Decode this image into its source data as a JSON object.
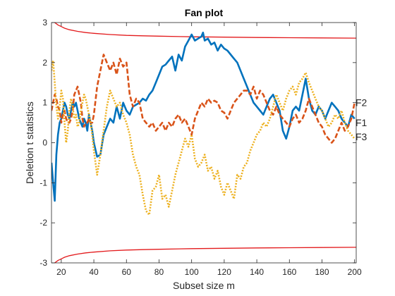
{
  "chart_data": {
    "type": "line",
    "title": "Fan plot",
    "xlabel": "Subset size m",
    "ylabel": "Deletion t statistics",
    "xlim": [
      14,
      201
    ],
    "ylim": [
      -3,
      3
    ],
    "xticks": [
      20,
      40,
      60,
      80,
      100,
      120,
      140,
      160,
      180,
      200
    ],
    "yticks": [
      -3,
      -2,
      -1,
      0,
      1,
      2,
      3
    ],
    "grid": false,
    "legend": "none",
    "bounds": {
      "color": "#e31a1c",
      "x": [
        14,
        16,
        18,
        20,
        22,
        25,
        30,
        35,
        40,
        50,
        60,
        70,
        80,
        100,
        120,
        140,
        160,
        180,
        201
      ],
      "upper": [
        3.08,
        3.0,
        2.94,
        2.9,
        2.86,
        2.82,
        2.78,
        2.75,
        2.73,
        2.7,
        2.68,
        2.67,
        2.66,
        2.645,
        2.635,
        2.627,
        2.621,
        2.616,
        2.612
      ],
      "lower": [
        -3.08,
        -3.0,
        -2.94,
        -2.9,
        -2.86,
        -2.82,
        -2.78,
        -2.75,
        -2.73,
        -2.7,
        -2.68,
        -2.67,
        -2.66,
        -2.645,
        -2.635,
        -2.627,
        -2.621,
        -2.616,
        -2.612
      ]
    },
    "series": [
      {
        "name": "F1",
        "color": "#0072bd",
        "style": "solid",
        "x": [
          14,
          15,
          16,
          17,
          18,
          19,
          20,
          21,
          22,
          23,
          24,
          25,
          26,
          27,
          28,
          29,
          30,
          31,
          32,
          33,
          34,
          35,
          36,
          37,
          38,
          39,
          40,
          42,
          44,
          46,
          48,
          50,
          52,
          54,
          56,
          58,
          60,
          62,
          64,
          66,
          68,
          70,
          72,
          74,
          76,
          78,
          80,
          82,
          84,
          86,
          88,
          90,
          92,
          94,
          96,
          98,
          100,
          102,
          104,
          106,
          107,
          108,
          110,
          112,
          114,
          116,
          118,
          120,
          122,
          124,
          126,
          128,
          130,
          132,
          134,
          136,
          138,
          140,
          142,
          144,
          146,
          148,
          150,
          152,
          154,
          156,
          158,
          160,
          162,
          164,
          166,
          168,
          170,
          172,
          174,
          176,
          178,
          180,
          182,
          184,
          186,
          188,
          190,
          192,
          194,
          196,
          198,
          200
        ],
        "y": [
          -0.5,
          -1.0,
          -1.45,
          -0.3,
          0.2,
          0.5,
          0.6,
          0.8,
          1.0,
          0.9,
          0.7,
          0.6,
          0.8,
          1.0,
          0.9,
          1.0,
          0.8,
          0.6,
          0.5,
          0.4,
          0.6,
          0.5,
          0.3,
          0.7,
          0.5,
          0.3,
          0.0,
          -0.35,
          -0.3,
          0.2,
          0.4,
          0.6,
          0.5,
          0.9,
          0.6,
          1.0,
          0.8,
          0.7,
          0.9,
          0.95,
          1.0,
          1.1,
          1.05,
          1.2,
          1.3,
          1.5,
          1.7,
          1.9,
          1.95,
          2.05,
          2.15,
          1.8,
          2.2,
          2.05,
          2.4,
          2.55,
          2.7,
          2.55,
          2.6,
          2.65,
          2.75,
          2.55,
          2.6,
          2.45,
          2.5,
          2.3,
          2.45,
          2.35,
          2.3,
          2.2,
          2.1,
          2.0,
          1.8,
          1.6,
          1.4,
          1.2,
          1.0,
          0.9,
          0.8,
          0.7,
          0.9,
          1.1,
          1.2,
          1.0,
          0.8,
          0.3,
          0.1,
          0.4,
          0.8,
          0.9,
          0.8,
          1.2,
          1.6,
          1.1,
          0.8,
          0.7,
          0.9,
          0.8,
          0.6,
          0.8,
          1.0,
          0.9,
          0.8,
          0.6,
          0.5,
          0.4,
          0.7,
          0.6
        ]
      },
      {
        "name": "F2",
        "color": "#d95319",
        "style": "dashed",
        "x": [
          14,
          15,
          16,
          17,
          18,
          19,
          20,
          21,
          22,
          23,
          24,
          25,
          26,
          27,
          28,
          29,
          30,
          31,
          32,
          33,
          34,
          35,
          36,
          37,
          38,
          39,
          40,
          42,
          44,
          46,
          48,
          50,
          52,
          54,
          56,
          58,
          60,
          62,
          64,
          66,
          68,
          70,
          72,
          74,
          76,
          78,
          80,
          82,
          84,
          86,
          88,
          90,
          92,
          94,
          96,
          98,
          100,
          102,
          104,
          106,
          108,
          110,
          112,
          114,
          116,
          118,
          120,
          122,
          124,
          126,
          128,
          130,
          132,
          134,
          136,
          138,
          140,
          142,
          144,
          146,
          148,
          150,
          152,
          154,
          156,
          158,
          160,
          162,
          164,
          166,
          168,
          170,
          172,
          174,
          176,
          178,
          180,
          182,
          184,
          186,
          188,
          190,
          192,
          194,
          196,
          198,
          200
        ],
        "y": [
          0.8,
          1.0,
          1.2,
          1.1,
          0.9,
          0.8,
          0.5,
          0.7,
          0.8,
          0.6,
          0.5,
          0.5,
          0.6,
          0.8,
          1.2,
          1.3,
          1.4,
          1.2,
          1.0,
          0.6,
          0.4,
          0.5,
          0.5,
          0.6,
          0.5,
          0.5,
          0.7,
          1.4,
          1.8,
          2.2,
          2.0,
          1.8,
          2.0,
          1.7,
          2.1,
          1.9,
          2.0,
          1.2,
          0.9,
          1.1,
          1.0,
          0.6,
          0.5,
          0.4,
          0.5,
          0.3,
          0.4,
          0.5,
          0.3,
          0.5,
          0.4,
          0.6,
          0.7,
          0.5,
          0.6,
          0.4,
          0.2,
          0.6,
          0.8,
          1.0,
          0.9,
          1.1,
          1.0,
          1.05,
          1.0,
          0.8,
          0.75,
          0.6,
          0.8,
          1.0,
          1.1,
          1.2,
          1.3,
          1.3,
          1.2,
          1.4,
          1.1,
          1.3,
          1.2,
          1.0,
          0.8,
          0.7,
          0.9,
          0.7,
          0.6,
          0.5,
          0.4,
          0.6,
          0.7,
          0.5,
          0.6,
          0.8,
          1.1,
          0.9,
          0.7,
          0.5,
          0.4,
          0.2,
          0.1,
          0.0,
          0.1,
          0.3,
          0.5,
          0.3,
          0.4,
          0.6,
          1.0
        ]
      },
      {
        "name": "F3",
        "color": "#edb120",
        "style": "dotted",
        "x": [
          14,
          15,
          16,
          17,
          18,
          19,
          20,
          21,
          22,
          23,
          24,
          25,
          26,
          27,
          28,
          29,
          30,
          31,
          32,
          33,
          34,
          35,
          36,
          37,
          38,
          39,
          40,
          42,
          44,
          46,
          48,
          50,
          52,
          54,
          56,
          58,
          60,
          62,
          64,
          66,
          68,
          70,
          72,
          74,
          76,
          78,
          80,
          82,
          84,
          86,
          88,
          90,
          92,
          94,
          96,
          98,
          100,
          102,
          104,
          106,
          108,
          110,
          112,
          114,
          116,
          118,
          120,
          122,
          124,
          126,
          128,
          130,
          132,
          134,
          136,
          138,
          140,
          142,
          144,
          146,
          148,
          150,
          152,
          154,
          156,
          158,
          160,
          162,
          164,
          166,
          168,
          170,
          172,
          174,
          176,
          178,
          180,
          182,
          184,
          186,
          188,
          190,
          192,
          194,
          196,
          198,
          200
        ],
        "y": [
          1.8,
          2.05,
          1.5,
          0.9,
          0.6,
          0.9,
          1.3,
          1.1,
          0.5,
          0.0,
          0.3,
          0.8,
          1.1,
          0.9,
          0.6,
          0.7,
          0.4,
          0.5,
          0.8,
          1.0,
          1.2,
          1.1,
          0.9,
          0.7,
          0.5,
          0.2,
          -0.2,
          -0.8,
          -0.3,
          0.3,
          0.9,
          1.3,
          1.1,
          0.9,
          1.0,
          0.7,
          0.5,
          0.2,
          -0.3,
          -0.6,
          -0.8,
          -1.3,
          -1.7,
          -1.8,
          -1.2,
          -1.1,
          -0.8,
          -1.4,
          -1.3,
          -1.6,
          -1.2,
          -0.8,
          -0.5,
          -0.2,
          0.1,
          -0.1,
          0.2,
          -0.4,
          -0.6,
          -0.5,
          -0.3,
          -0.7,
          -0.6,
          -0.9,
          -0.7,
          -1.1,
          -1.3,
          -1.0,
          -1.2,
          -1.4,
          -0.8,
          -0.9,
          -0.6,
          -0.5,
          -0.2,
          0.0,
          0.2,
          0.3,
          0.5,
          0.4,
          0.6,
          0.9,
          1.2,
          1.0,
          0.8,
          1.1,
          1.3,
          1.4,
          1.2,
          1.5,
          1.6,
          1.75,
          1.5,
          1.3,
          1.1,
          0.9,
          0.8,
          0.6,
          0.4,
          0.5,
          0.7,
          0.6,
          0.8,
          0.5,
          0.3,
          0.2,
          0.1
        ]
      }
    ],
    "annotations": [
      {
        "text": "F2",
        "x": 201,
        "y": 1.0
      },
      {
        "text": "F1",
        "x": 201,
        "y": 0.5
      },
      {
        "text": "F3",
        "x": 201,
        "y": 0.15
      }
    ]
  }
}
